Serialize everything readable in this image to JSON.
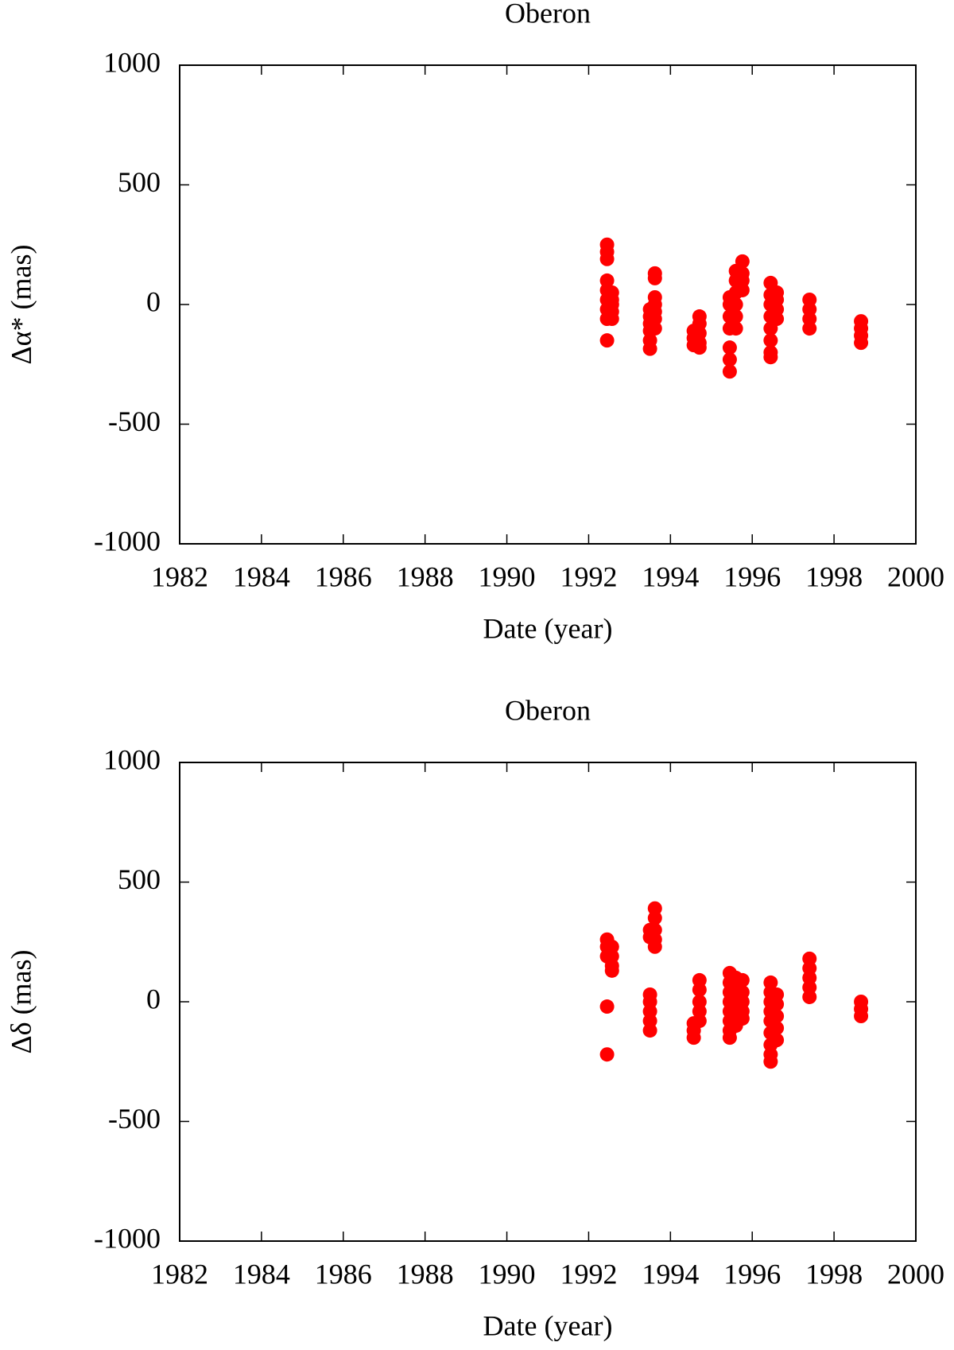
{
  "chart_data": [
    {
      "type": "scatter",
      "title": "Oberon",
      "xlabel": "Date (year)",
      "ylabel": "Δα* (mas)",
      "color": "#ff0000",
      "xlim": [
        1982,
        2000
      ],
      "xticks": [
        1982,
        1984,
        1986,
        1988,
        1990,
        1992,
        1994,
        1996,
        1998,
        2000
      ],
      "ylim": [
        -1000,
        1000
      ],
      "yticks": [
        -1000,
        -500,
        0,
        500,
        1000
      ],
      "x": [
        1992.45,
        1992.45,
        1992.45,
        1992.45,
        1992.45,
        1992.45,
        1992.45,
        1992.45,
        1992.45,
        1992.57,
        1992.57,
        1992.57,
        1992.57,
        1992.57,
        1993.5,
        1993.5,
        1993.5,
        1993.5,
        1993.5,
        1993.5,
        1993.62,
        1993.62,
        1993.62,
        1993.62,
        1993.62,
        1993.62,
        1993.62,
        1994.57,
        1994.57,
        1994.57,
        1994.71,
        1994.71,
        1994.71,
        1994.71,
        1994.71,
        1995.45,
        1995.45,
        1995.45,
        1995.45,
        1995.45,
        1995.45,
        1995.45,
        1995.6,
        1995.6,
        1995.6,
        1995.6,
        1995.6,
        1995.6,
        1995.76,
        1995.76,
        1995.76,
        1995.76,
        1996.45,
        1996.45,
        1996.45,
        1996.45,
        1996.45,
        1996.45,
        1996.45,
        1996.45,
        1996.6,
        1996.6,
        1996.6,
        1996.6,
        1997.4,
        1997.4,
        1997.4,
        1997.4,
        1998.66,
        1998.66,
        1998.66,
        1998.66
      ],
      "values": [
        250,
        220,
        190,
        100,
        60,
        20,
        -20,
        -60,
        -150,
        50,
        20,
        0,
        -30,
        -60,
        -20,
        -50,
        -80,
        -110,
        -150,
        -185,
        130,
        110,
        30,
        0,
        -30,
        -60,
        -100,
        -110,
        -140,
        -170,
        -50,
        -80,
        -120,
        -160,
        -180,
        30,
        0,
        -50,
        -100,
        -180,
        -230,
        -280,
        140,
        100,
        50,
        0,
        -50,
        -100,
        180,
        130,
        100,
        60,
        90,
        40,
        0,
        -50,
        -100,
        -150,
        -200,
        -220,
        50,
        20,
        -20,
        -60,
        20,
        -20,
        -60,
        -100,
        -70,
        -100,
        -130,
        -160
      ]
    },
    {
      "type": "scatter",
      "title": "Oberon",
      "xlabel": "Date (year)",
      "ylabel": "Δδ (mas)",
      "color": "#ff0000",
      "xlim": [
        1982,
        2000
      ],
      "xticks": [
        1982,
        1984,
        1986,
        1988,
        1990,
        1992,
        1994,
        1996,
        1998,
        2000
      ],
      "ylim": [
        -1000,
        1000
      ],
      "yticks": [
        -1000,
        -500,
        0,
        500,
        1000
      ],
      "x": [
        1992.45,
        1992.45,
        1992.45,
        1992.45,
        1992.45,
        1992.57,
        1992.57,
        1992.57,
        1992.57,
        1993.5,
        1993.5,
        1993.5,
        1993.5,
        1993.5,
        1993.5,
        1993.5,
        1993.62,
        1993.62,
        1993.62,
        1993.62,
        1993.62,
        1994.57,
        1994.57,
        1994.57,
        1994.71,
        1994.71,
        1994.71,
        1994.71,
        1994.71,
        1995.45,
        1995.45,
        1995.45,
        1995.45,
        1995.45,
        1995.45,
        1995.45,
        1995.45,
        1995.6,
        1995.6,
        1995.6,
        1995.6,
        1995.6,
        1995.76,
        1995.76,
        1995.76,
        1995.76,
        1995.76,
        1996.45,
        1996.45,
        1996.45,
        1996.45,
        1996.45,
        1996.45,
        1996.45,
        1996.45,
        1996.45,
        1996.6,
        1996.6,
        1996.6,
        1996.6,
        1996.6,
        1997.4,
        1997.4,
        1997.4,
        1997.4,
        1997.4,
        1998.66,
        1998.66,
        1998.66
      ],
      "values": [
        260,
        230,
        190,
        -20,
        -220,
        230,
        190,
        150,
        130,
        300,
        270,
        30,
        0,
        -40,
        -80,
        -120,
        390,
        350,
        300,
        260,
        230,
        -90,
        -120,
        -150,
        90,
        50,
        0,
        -40,
        -80,
        120,
        80,
        40,
        0,
        -40,
        -80,
        -120,
        -150,
        100,
        50,
        0,
        -50,
        -100,
        90,
        40,
        0,
        -40,
        -70,
        80,
        40,
        0,
        -40,
        -80,
        -130,
        -180,
        -220,
        -250,
        30,
        -10,
        -60,
        -110,
        -160,
        180,
        140,
        100,
        60,
        20,
        0,
        -30,
        -60
      ]
    }
  ]
}
